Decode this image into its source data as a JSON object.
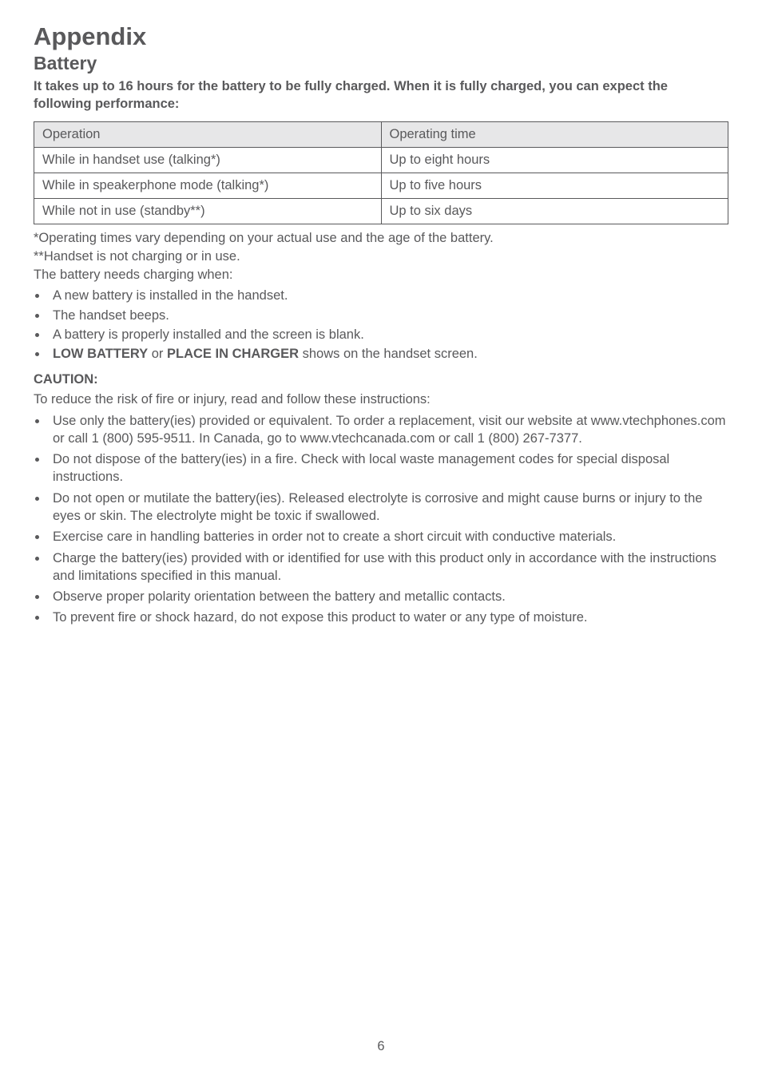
{
  "title": "Appendix",
  "section": "Battery",
  "intro": "It takes up to 16 hours for the battery to be fully charged. When it is fully charged, you can expect the following performance:",
  "table": {
    "header": {
      "op": "Operation",
      "time": "Operating time"
    },
    "rows": [
      {
        "op": "While in handset use (talking*)",
        "time": "Up to eight hours"
      },
      {
        "op": "While in speakerphone mode (talking*)",
        "time": "Up to five hours"
      },
      {
        "op": "While not in use (standby**)",
        "time": "Up to six days"
      }
    ]
  },
  "note_star": "*Operating times vary depending on your actual use and the age of the battery.",
  "note_dstar": "**Handset is not charging or in use.",
  "charging_when": "The battery needs charging when:",
  "charging_list": [
    "A new battery is installed in the handset.",
    "The handset beeps.",
    "A battery is properly installed and the screen is blank."
  ],
  "charging_low_prefix": "LOW BATTERY",
  "charging_low_mid": " or ",
  "charging_low_bold2": "PLACE IN CHARGER",
  "charging_low_suffix": " shows on the handset screen.",
  "caution_head": "CAUTION:",
  "caution_sub": "To reduce the risk of fire or injury, read and follow these instructions:",
  "caution_list": [
    "Use only the battery(ies) provided or equivalent. To order a replacement, visit our website at www.vtechphones.com or call 1 (800) 595-9511. In Canada, go to www.vtechcanada.com or call 1 (800) 267-7377.",
    "Do not dispose of the battery(ies) in a fire. Check with local waste management codes for special disposal instructions.",
    "Do not open or mutilate the battery(ies). Released electrolyte is corrosive and might cause burns or injury to the eyes or skin. The electrolyte might be toxic if swallowed.",
    "Exercise care in handling batteries in order not to create a short circuit with conductive materials.",
    "Charge the battery(ies) provided with or identified for use with this product only in accordance with the instructions and limitations specified in this manual.",
    "Observe proper polarity orientation between the battery and metallic contacts.",
    "To prevent fire or shock hazard, do not expose this product to water or any type of moisture."
  ],
  "page_number": "6"
}
